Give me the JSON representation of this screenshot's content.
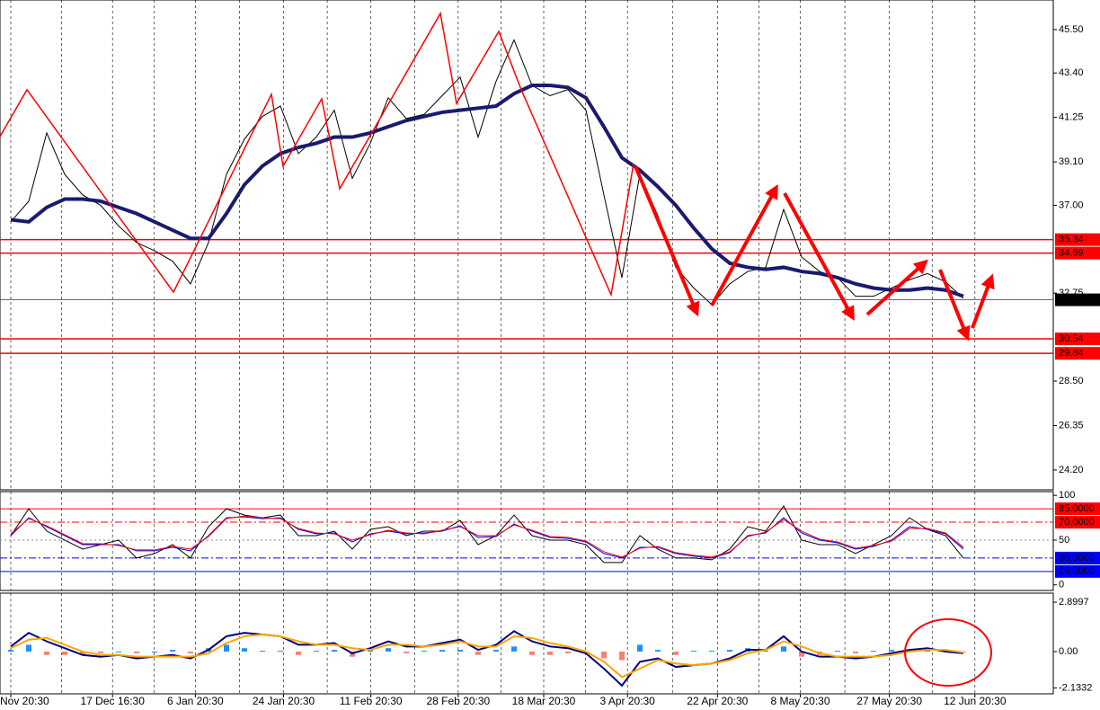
{
  "chart_data": [
    {
      "type": "line",
      "xlim": [
        0,
        58.5
      ],
      "ylim": [
        23.24,
        46.93
      ],
      "yticks": [
        {
          "value": 45.5,
          "label": "45.50"
        },
        {
          "value": 43.4,
          "label": "43.40"
        },
        {
          "value": 41.25,
          "label": "41.25"
        },
        {
          "value": 39.1,
          "label": "39.10"
        },
        {
          "value": 37,
          "label": "37.00"
        },
        {
          "value": 32.75,
          "label": "32.75"
        },
        {
          "value": 28.5,
          "label": "28.50"
        },
        {
          "value": 26.35,
          "label": "26.35"
        },
        {
          "value": 24.2,
          "label": "24.20"
        }
      ],
      "series": [
        {
          "color": "#000000",
          "values": [
            36.2,
            37.2,
            40.5,
            38.5,
            37.5,
            37.0,
            36.0,
            35.2,
            34.8,
            34.3,
            33.2,
            35.2,
            38.5,
            40.2,
            41.3,
            41.8,
            39.5,
            40.3,
            41.6,
            38.3,
            40.0,
            42.2,
            41.2,
            41.4,
            42.3,
            43.2,
            40.3,
            43.0,
            45.0,
            42.8,
            42.3,
            42.6,
            41.6,
            37.5,
            33.5,
            38.5,
            36.5,
            34.0,
            33.0,
            32.2,
            33.2,
            33.8,
            34.0,
            36.8,
            34.5,
            33.8,
            33.5,
            32.6,
            32.6,
            33.0,
            33.4,
            33.7,
            33.3,
            32.5
          ]
        },
        {
          "color": "#1a1a6e",
          "values": [
            36.3,
            36.2,
            36.9,
            37.3,
            37.3,
            37.2,
            36.9,
            36.6,
            36.2,
            35.8,
            35.4,
            35.4,
            36.6,
            38.0,
            38.9,
            39.5,
            39.8,
            40.0,
            40.3,
            40.3,
            40.5,
            40.8,
            41.1,
            41.3,
            41.5,
            41.6,
            41.7,
            41.8,
            42.4,
            42.8,
            42.8,
            42.7,
            42.2,
            40.8,
            39.3,
            38.7,
            37.9,
            37.0,
            35.9,
            34.9,
            34.2,
            34.0,
            33.9,
            34.0,
            33.8,
            33.7,
            33.5,
            33.2,
            33.0,
            32.9,
            32.9,
            33.0,
            32.9,
            32.6
          ]
        }
      ],
      "zigzag": {
        "color": "#ff0000",
        "x": [
          0,
          1.5,
          9.65,
          15.1,
          15.75,
          17.9,
          18.9,
          24.5,
          25.4,
          27.75,
          29,
          34,
          35.25
        ],
        "values": [
          40.33,
          42.59,
          32.8,
          42.37,
          38.89,
          42.15,
          37.8,
          46.28,
          41.93,
          45.41,
          42.59,
          32.67,
          39.02
        ]
      },
      "levels": [
        {
          "value": 35.34,
          "color": "#ff0000"
        },
        {
          "value": 34.69,
          "color": "#ff0000"
        },
        {
          "value": 30.54,
          "color": "#ff0000"
        },
        {
          "value": 29.84,
          "color": "#ff0000"
        }
      ],
      "last_price": 32.43
    },
    {
      "type": "line",
      "xlim": [
        0,
        58.5
      ],
      "ylim": [
        -6.25,
        104.2
      ],
      "yticks": [
        100,
        50,
        0
      ],
      "series": [
        {
          "color": "#000000",
          "values": [
            55,
            85,
            60,
            50,
            40,
            45,
            50,
            30,
            35,
            45,
            30,
            65,
            85,
            78,
            75,
            78,
            55,
            55,
            60,
            40,
            62,
            65,
            55,
            60,
            60,
            72,
            45,
            55,
            78,
            55,
            50,
            50,
            45,
            25,
            25,
            55,
            40,
            30,
            30,
            28,
            40,
            65,
            60,
            88,
            50,
            45,
            45,
            35,
            45,
            55,
            75,
            62,
            55,
            30
          ]
        },
        {
          "color": "#0000ff",
          "values": [
            55,
            75,
            65,
            55,
            45,
            45,
            45,
            38,
            38,
            42,
            38,
            55,
            75,
            76,
            74,
            75,
            62,
            57,
            58,
            48,
            57,
            60,
            57,
            58,
            60,
            66,
            53,
            54,
            68,
            60,
            53,
            52,
            48,
            35,
            30,
            42,
            42,
            35,
            32,
            30,
            36,
            55,
            58,
            75,
            58,
            50,
            47,
            40,
            43,
            50,
            65,
            62,
            57,
            40
          ]
        },
        {
          "color": "#ff0000",
          "values": [
            57,
            74,
            66,
            56,
            46,
            46,
            44,
            39,
            39,
            43,
            40,
            54,
            74,
            77,
            75,
            74,
            63,
            58,
            57,
            50,
            56,
            61,
            58,
            57,
            61,
            65,
            55,
            55,
            67,
            61,
            54,
            53,
            49,
            37,
            31,
            41,
            43,
            36,
            33,
            31,
            37,
            54,
            59,
            73,
            60,
            51,
            48,
            41,
            44,
            49,
            63,
            63,
            58,
            42
          ]
        }
      ],
      "levels": [
        {
          "value": 85,
          "label": "85.0000",
          "color": "#ff0000"
        },
        {
          "value": 70,
          "label": "70.0000",
          "color": "#ff0000"
        },
        {
          "value": 30,
          "label": "30.0000",
          "color": "#0000ff"
        },
        {
          "value": 15,
          "label": "15.0000",
          "color": "#0000ff"
        }
      ]
    },
    {
      "type": "macd",
      "xlim": [
        0,
        58.5
      ],
      "ylim": [
        -2.48,
        3.43
      ],
      "yticks": [
        {
          "value": 2.8997,
          "label": "2.8997"
        },
        {
          "value": 0,
          "label": "0.00"
        },
        {
          "value": -2.1332,
          "label": "-2.1332"
        }
      ],
      "histogram": {
        "up_color": "#1e90ff",
        "down_color": "#fa8072",
        "values": [
          0.1,
          0.4,
          -0.2,
          -0.2,
          -0.2,
          -0.1,
          0.0,
          -0.1,
          0.0,
          0.1,
          -0.1,
          0.2,
          0.4,
          0.2,
          0.05,
          0.05,
          -0.2,
          0.05,
          0.1,
          -0.3,
          0.1,
          0.2,
          -0.1,
          0.05,
          0.1,
          0.1,
          -0.2,
          0.1,
          0.3,
          -0.2,
          -0.2,
          -0.1,
          -0.1,
          -0.4,
          -0.5,
          0.4,
          0.1,
          -0.2,
          0.05,
          0.05,
          0.1,
          0.2,
          0.05,
          0.3,
          -0.3,
          -0.2,
          0.05,
          -0.1,
          0.05,
          0.1,
          0.1,
          0.05,
          0.1,
          -0.05
        ]
      },
      "series": [
        {
          "color": "#000080",
          "values": [
            0.3,
            1.1,
            0.6,
            0.2,
            -0.2,
            -0.3,
            -0.2,
            -0.4,
            -0.3,
            -0.2,
            -0.4,
            0.1,
            0.9,
            1.1,
            1.0,
            0.9,
            0.4,
            0.4,
            0.5,
            -0.1,
            0.2,
            0.6,
            0.3,
            0.3,
            0.5,
            0.7,
            0.1,
            0.4,
            1.2,
            0.6,
            0.3,
            0.2,
            -0.1,
            -1.0,
            -2.0,
            -0.6,
            -0.4,
            -0.9,
            -0.8,
            -0.7,
            -0.4,
            0.1,
            0.1,
            0.9,
            0.0,
            -0.3,
            -0.3,
            -0.4,
            -0.3,
            -0.1,
            0.1,
            0.2,
            0.0,
            -0.1
          ]
        },
        {
          "color": "#ffa500",
          "values": [
            0.2,
            0.7,
            0.8,
            0.4,
            0.0,
            -0.2,
            -0.2,
            -0.3,
            -0.3,
            -0.3,
            -0.3,
            -0.1,
            0.5,
            0.9,
            1.0,
            0.9,
            0.6,
            0.4,
            0.4,
            0.2,
            0.1,
            0.4,
            0.4,
            0.3,
            0.4,
            0.6,
            0.3,
            0.3,
            0.9,
            0.8,
            0.5,
            0.3,
            0.0,
            -0.6,
            -1.5,
            -1.0,
            -0.5,
            -0.7,
            -0.8,
            -0.7,
            -0.5,
            -0.1,
            0.1,
            0.6,
            0.3,
            -0.1,
            -0.3,
            -0.3,
            -0.3,
            -0.2,
            0.0,
            0.1,
            0.1,
            -0.05
          ]
        }
      ],
      "xticks": [
        {
          "value": 0,
          "label": "Nov 20:30"
        },
        {
          "value": 5.65,
          "label": "17 Dec 16:30"
        },
        {
          "value": 10.25,
          "label": "6 Jan 20:30"
        },
        {
          "value": 15.15,
          "label": "24 Jan 20:30"
        },
        {
          "value": 20,
          "label": "11 Feb 20:30"
        },
        {
          "value": 24.85,
          "label": "28 Feb 20:30"
        },
        {
          "value": 29.6,
          "label": "18 Mar 20:30"
        },
        {
          "value": 34.25,
          "label": "3 Apr 20:30"
        },
        {
          "value": 39.25,
          "label": "22 Apr 20:30"
        },
        {
          "value": 43.85,
          "label": "8 May 20:30"
        },
        {
          "value": 48.8,
          "label": "27 May 20:30"
        },
        {
          "value": 53.55,
          "label": "12 Jun 20:30"
        }
      ]
    }
  ]
}
